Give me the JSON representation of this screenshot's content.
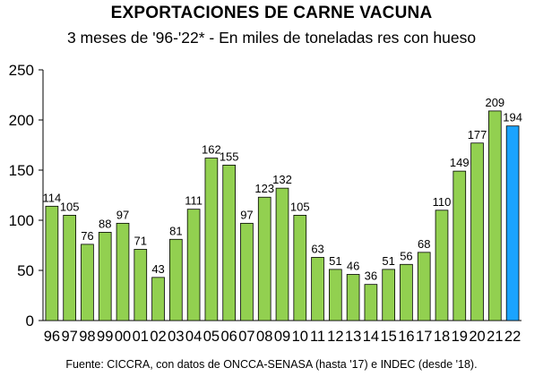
{
  "chart_data": {
    "type": "bar",
    "title": "EXPORTACIONES DE CARNE VACUNA",
    "subtitle": "3 meses de '96-'22* - En miles de toneladas res con hueso",
    "xlabel": "",
    "ylabel": "",
    "ylim": [
      0,
      250
    ],
    "yticks": [
      0,
      50,
      100,
      150,
      200,
      250
    ],
    "grid": false,
    "categories": [
      "96",
      "97",
      "98",
      "99",
      "00",
      "01",
      "02",
      "03",
      "04",
      "05",
      "06",
      "07",
      "08",
      "09",
      "10",
      "11",
      "12",
      "13",
      "14",
      "15",
      "16",
      "17",
      "18",
      "19",
      "20",
      "21",
      "22"
    ],
    "values": [
      114,
      105,
      76,
      88,
      97,
      71,
      43,
      81,
      111,
      162,
      155,
      97,
      123,
      132,
      105,
      63,
      51,
      46,
      36,
      51,
      56,
      68,
      110,
      149,
      177,
      209,
      194
    ],
    "colors": {
      "default": "#92d050",
      "highlight": "#1aa3ff",
      "border": "#000000"
    },
    "highlight_category": "22",
    "footnote": "Fuente: CICCRA, con datos de ONCCA-SENASA (hasta '17) e INDEC (desde '18)."
  }
}
